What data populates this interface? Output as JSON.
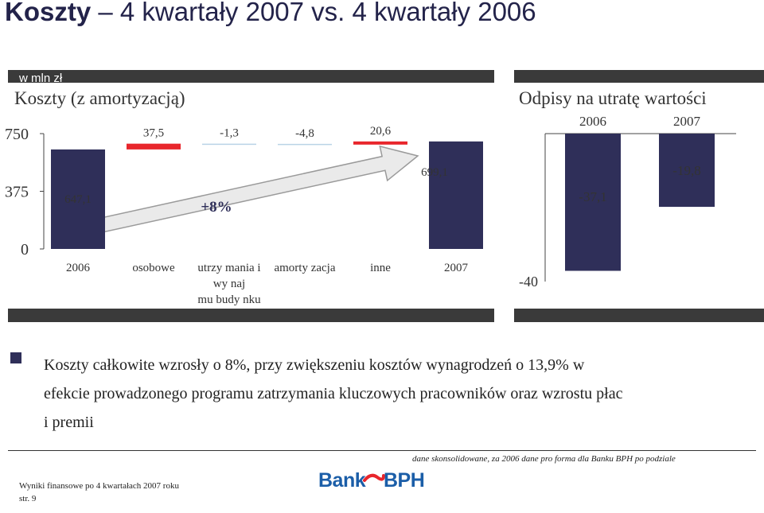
{
  "slide": {
    "title_bold": "Koszty",
    "title_rest": " – 4 kwartały 2007 vs. 4 kwartały 2006",
    "unit_label": "w mln zł"
  },
  "chart_data": [
    {
      "type": "bar",
      "subtype": "waterfall",
      "title": "Koszty (z amortyzacją)",
      "categories": [
        "2006",
        "osobowe",
        "utrzymania i wynajmu budynku",
        "amortyzacja",
        "inne",
        "2007"
      ],
      "category_labels": [
        "2006",
        "osobowe",
        "utrzy mania i wy naj mu budy nku",
        "amorty zacja",
        "inne",
        "2007"
      ],
      "values": [
        647.1,
        37.5,
        -1.3,
        -4.8,
        20.6,
        699.1
      ],
      "value_labels": [
        "647,1",
        "37,5",
        "-1,3",
        "-4,8",
        "20,6",
        "699,1"
      ],
      "ylim": [
        0,
        750
      ],
      "yticks": [
        0,
        375,
        750
      ],
      "ytick_labels": [
        "0",
        "375",
        "750"
      ],
      "annotation": "+8%",
      "colors": {
        "total": "#2f2f59",
        "increase": "#e8262c",
        "decrease": "#b9d3e6"
      }
    },
    {
      "type": "bar",
      "title": "Odpisy na utratę wartości",
      "categories": [
        "2006",
        "2007"
      ],
      "values": [
        -37.1,
        -19.8
      ],
      "value_labels": [
        "-37,1",
        "-19,8"
      ],
      "ylim": [
        -40,
        0
      ],
      "yticks": [
        -40
      ],
      "ytick_labels": [
        "-40"
      ],
      "colors": {
        "bar": "#2f2f59"
      }
    }
  ],
  "commentary": {
    "line1": "Koszty całkowite wzrosły o 8%, przy zwiększeniu kosztów wynagrodzeń o  13,9% w",
    "line2": "efekcie prowadzonego programu zatrzymania kluczowych pracowników oraz wzrostu płac",
    "line3": "i premii"
  },
  "footer": {
    "note": "dane skonsolidowane, za 2006 dane pro forma dla Banku BPH po podziale",
    "report": "Wyniki finansowe po 4 kwartałach 2007 roku",
    "page": "str. 9",
    "logo_text_left": "Bank",
    "logo_text_right": "BPH"
  },
  "colors": {
    "navy": "#2f2f59",
    "panel_bar": "#3a3a3a",
    "accent_red": "#e8262c",
    "logo_blue": "#1b5ea8"
  }
}
